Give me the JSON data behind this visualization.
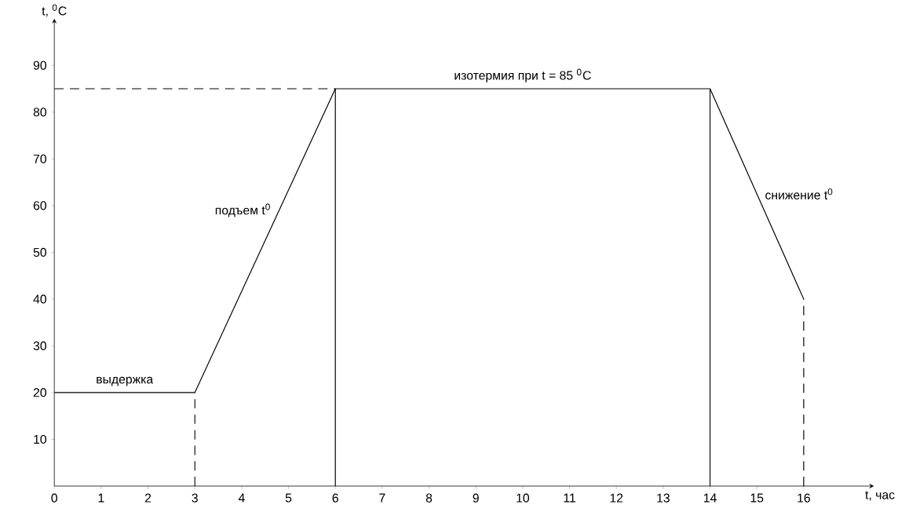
{
  "chart_data": {
    "type": "line",
    "xlabel": "t, час",
    "ylabel": "t, $^{0}$C",
    "xlim": [
      0,
      17.5
    ],
    "ylim": [
      0,
      100
    ],
    "xticks": [
      0,
      1,
      2,
      3,
      4,
      5,
      6,
      7,
      8,
      9,
      10,
      11,
      12,
      13,
      14,
      15,
      16
    ],
    "yticks": [
      10,
      20,
      30,
      40,
      50,
      60,
      70,
      80,
      90
    ],
    "grid": false,
    "series": [
      {
        "color": "#000000",
        "line_style": "solid",
        "x": [
          0,
          3,
          6,
          14,
          16
        ],
        "values": [
          20,
          20,
          85,
          85,
          40
        ]
      },
      {
        "color": "#000000",
        "line_style": "dashed",
        "x": [
          0,
          6
        ],
        "values": [
          85,
          85
        ]
      },
      {
        "color": "#000000",
        "line_style": "dashed",
        "x": [
          3,
          3
        ],
        "values": [
          0,
          20
        ]
      },
      {
        "color": "#000000",
        "line_style": "solid",
        "x": [
          6,
          6
        ],
        "values": [
          0,
          85
        ]
      },
      {
        "color": "#000000",
        "line_style": "solid",
        "x": [
          14,
          14
        ],
        "values": [
          0,
          85
        ]
      },
      {
        "color": "#000000",
        "line_style": "dashed",
        "x": [
          16,
          16
        ],
        "values": [
          0,
          40
        ]
      }
    ],
    "annotations": [
      {
        "text": "выдержка",
        "x": 1.5,
        "y": 21
      },
      {
        "text": "подъем t$^{0}$",
        "x": 4.8,
        "y": 59
      },
      {
        "text": "изотермия при t = 85 $^{0}$C",
        "x": 10,
        "y": 86
      },
      {
        "text": "снижение t$^{0}$",
        "x": 15,
        "y": 62.5
      }
    ]
  }
}
